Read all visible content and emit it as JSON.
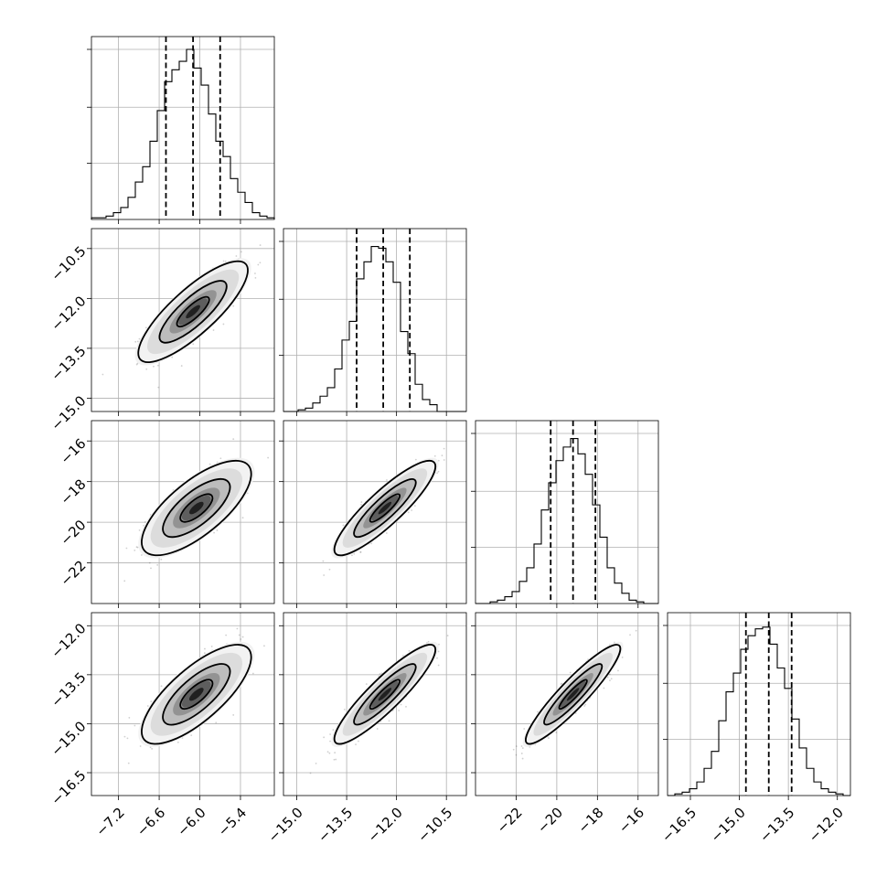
{
  "chart_data": {
    "type": "corner",
    "grid": true,
    "dimensions": [
      {
        "range": [
          -7.6,
          -4.9
        ],
        "ticks": [
          -7.2,
          -6.6,
          -6.0,
          -5.4
        ],
        "tick_labels": [
          "−7.2",
          "−6.6",
          "−6.0",
          "−5.4"
        ],
        "quantiles": [
          -6.5,
          -6.1,
          -5.7
        ],
        "hist_edges": [
          -7.6,
          -4.9
        ],
        "hist": [
          0.01,
          0.01,
          0.02,
          0.04,
          0.07,
          0.13,
          0.22,
          0.31,
          0.46,
          0.64,
          0.81,
          0.88,
          0.93,
          1.0,
          0.89,
          0.79,
          0.62,
          0.46,
          0.37,
          0.24,
          0.16,
          0.1,
          0.04,
          0.02,
          0.01
        ]
      },
      {
        "range": [
          -15.4,
          -9.9
        ],
        "ticks": [
          -15.0,
          -13.5,
          -12.0,
          -10.5
        ],
        "tick_labels": [
          "−15.0",
          "−13.5",
          "−12.0",
          "−10.5"
        ],
        "quantiles": [
          -13.2,
          -12.4,
          -11.6
        ],
        "hist_edges": [
          -15.4,
          -9.9
        ],
        "hist": [
          0.0,
          0.0,
          0.01,
          0.02,
          0.05,
          0.09,
          0.14,
          0.25,
          0.42,
          0.53,
          0.78,
          0.88,
          0.97,
          0.96,
          0.88,
          0.76,
          0.47,
          0.34,
          0.16,
          0.07,
          0.04,
          0.0,
          0.0,
          0.0,
          0.0
        ]
      },
      {
        "range": [
          -24.0,
          -15.0
        ],
        "ticks": [
          -22,
          -20,
          -18,
          -16
        ],
        "tick_labels": [
          "−22",
          "−20",
          "−18",
          "−16"
        ],
        "quantiles": [
          -20.3,
          -19.2,
          -18.1
        ],
        "hist_edges": [
          -24.0,
          -15.0
        ],
        "hist": [
          0.0,
          0.0,
          0.01,
          0.02,
          0.04,
          0.07,
          0.13,
          0.21,
          0.35,
          0.55,
          0.71,
          0.84,
          0.92,
          0.97,
          0.88,
          0.76,
          0.58,
          0.39,
          0.21,
          0.12,
          0.06,
          0.02,
          0.01,
          0.0,
          0.0
        ]
      },
      {
        "range": [
          -17.2,
          -11.6
        ],
        "ticks": [
          -16.5,
          -15.0,
          -13.5,
          -12.0
        ],
        "tick_labels": [
          "−16.5",
          "−15.0",
          "−13.5",
          "−12.0"
        ],
        "quantiles": [
          -14.8,
          -14.1,
          -13.4
        ],
        "hist_edges": [
          -17.2,
          -11.6
        ],
        "hist": [
          0.0,
          0.01,
          0.02,
          0.04,
          0.08,
          0.16,
          0.26,
          0.44,
          0.61,
          0.72,
          0.86,
          0.94,
          0.98,
          0.99,
          0.89,
          0.75,
          0.63,
          0.45,
          0.28,
          0.16,
          0.08,
          0.04,
          0.02,
          0.01,
          0.0
        ]
      }
    ],
    "hist_ticks_fraction": [
      0.33,
      0.66,
      1.0
    ],
    "joint": [
      {
        "row": 1,
        "col": 0,
        "mean": [
          -6.1,
          -12.4
        ],
        "sd": [
          0.33,
          0.62
        ],
        "corr": 0.82
      },
      {
        "row": 2,
        "col": 0,
        "mean": [
          -6.05,
          -19.3
        ],
        "sd": [
          0.33,
          0.95
        ],
        "corr": 0.72
      },
      {
        "row": 2,
        "col": 1,
        "mean": [
          -12.35,
          -19.3
        ],
        "sd": [
          0.62,
          0.95
        ],
        "corr": 0.88
      },
      {
        "row": 3,
        "col": 0,
        "mean": [
          -6.05,
          -14.1
        ],
        "sd": [
          0.33,
          0.62
        ],
        "corr": 0.75
      },
      {
        "row": 3,
        "col": 1,
        "mean": [
          -12.35,
          -14.1
        ],
        "sd": [
          0.62,
          0.62
        ],
        "corr": 0.9
      },
      {
        "row": 3,
        "col": 2,
        "mean": [
          -19.2,
          -14.1
        ],
        "sd": [
          0.95,
          0.62
        ],
        "corr": 0.92
      }
    ],
    "contour_levels_sigma": [
      1,
      2,
      3
    ]
  }
}
